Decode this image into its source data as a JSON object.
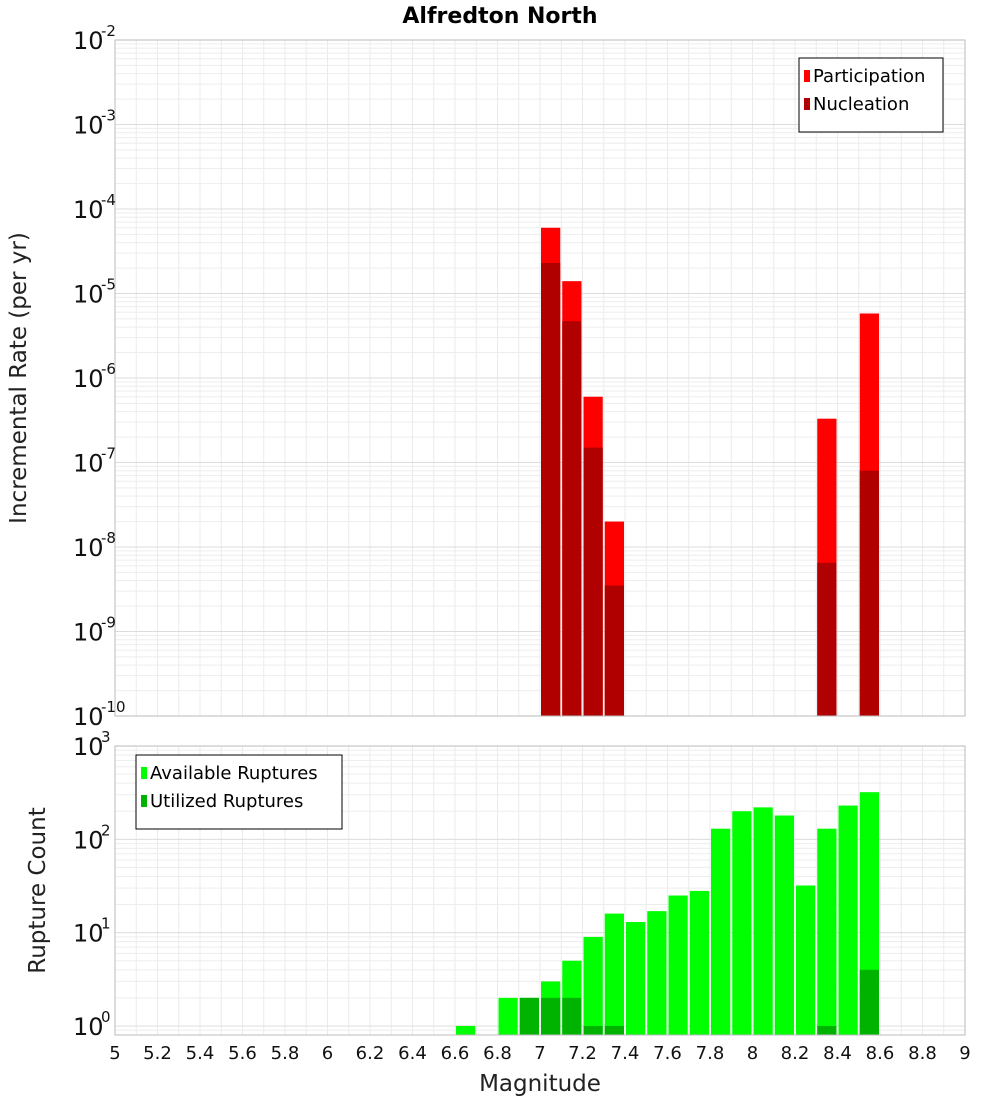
{
  "title": "Alfredton North",
  "chart_data": [
    {
      "type": "bar",
      "title": "Alfredton North",
      "xlabel": "Magnitude",
      "ylabel": "Incremental Rate (per yr)",
      "yscale": "log",
      "xlim": [
        5,
        9
      ],
      "ylim": [
        1e-10,
        0.01
      ],
      "bin_width": 0.1,
      "grid": true,
      "legend_position": "top-right",
      "y_tick_exponents": [
        "-2",
        "-3",
        "-4",
        "-5",
        "-6",
        "-7",
        "-8",
        "-9",
        "-10"
      ],
      "x_ticks": [
        "5",
        "5.2",
        "5.4",
        "5.6",
        "5.8",
        "6",
        "6.2",
        "6.4",
        "6.6",
        "6.8",
        "7",
        "7.2",
        "7.4",
        "7.6",
        "7.8",
        "8",
        "8.2",
        "8.4",
        "8.6",
        "8.8",
        "9"
      ],
      "series": [
        {
          "name": "Participation",
          "color": "#ff0000",
          "x": [
            7.05,
            7.15,
            7.25,
            7.35,
            8.35,
            8.55
          ],
          "values": [
            6e-05,
            1.4e-05,
            6e-07,
            2e-08,
            3.3e-07,
            5.8e-06
          ]
        },
        {
          "name": "Nucleation",
          "color": "#b00000",
          "x": [
            7.05,
            7.15,
            7.25,
            7.35,
            8.35,
            8.55
          ],
          "values": [
            2.3e-05,
            4.7e-06,
            1.5e-07,
            3.5e-09,
            6.5e-09,
            8e-08
          ]
        }
      ]
    },
    {
      "type": "bar",
      "xlabel": "Magnitude",
      "ylabel": "Rupture Count",
      "yscale": "log",
      "xlim": [
        5,
        9
      ],
      "ylim": [
        0.8,
        1000
      ],
      "bin_width": 0.1,
      "grid": true,
      "legend_position": "top-left",
      "y_tick_exponents": [
        "3",
        "2",
        "1",
        "0"
      ],
      "series": [
        {
          "name": "Available Ruptures",
          "color": "#00ff00",
          "x": [
            6.65,
            6.85,
            6.95,
            7.05,
            7.15,
            7.25,
            7.35,
            7.45,
            7.55,
            7.65,
            7.75,
            7.85,
            7.95,
            8.05,
            8.15,
            8.25,
            8.35,
            8.45,
            8.55
          ],
          "values": [
            1,
            2,
            2,
            3,
            5,
            9,
            16,
            13,
            17,
            25,
            28,
            130,
            200,
            220,
            180,
            32,
            130,
            230,
            320
          ]
        },
        {
          "name": "Utilized Ruptures",
          "color": "#00b300",
          "x": [
            6.95,
            7.05,
            7.15,
            7.25,
            7.35,
            8.35,
            8.55
          ],
          "values": [
            2,
            2,
            2,
            1,
            1,
            1,
            4
          ]
        }
      ]
    }
  ]
}
